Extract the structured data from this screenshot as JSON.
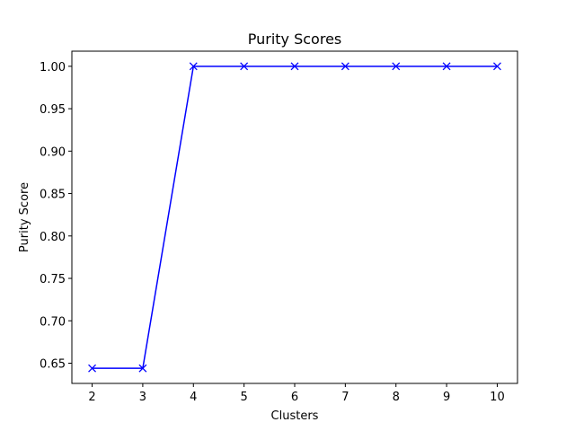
{
  "chart_data": {
    "type": "line",
    "title": "Purity Scores",
    "xlabel": "Clusters",
    "ylabel": "Purity Score",
    "x": [
      2,
      3,
      4,
      5,
      6,
      7,
      8,
      9,
      10
    ],
    "series": [
      {
        "values": [
          0.644,
          0.644,
          1.0,
          1.0,
          1.0,
          1.0,
          1.0,
          1.0,
          1.0
        ],
        "color": "#0000ff",
        "marker": "x"
      }
    ],
    "xlim": [
      1.6,
      10.4
    ],
    "ylim": [
      0.6262,
      1.0178
    ],
    "xticks": [
      2,
      3,
      4,
      5,
      6,
      7,
      8,
      9,
      10
    ],
    "xtick_labels": [
      "2",
      "3",
      "4",
      "5",
      "6",
      "7",
      "8",
      "9",
      "10"
    ],
    "yticks": [
      0.65,
      0.7,
      0.75,
      0.8,
      0.85,
      0.9,
      0.95,
      1.0
    ],
    "ytick_labels": [
      "0.65",
      "0.70",
      "0.75",
      "0.80",
      "0.85",
      "0.90",
      "0.95",
      "1.00"
    ],
    "grid": false,
    "legend": "none"
  }
}
